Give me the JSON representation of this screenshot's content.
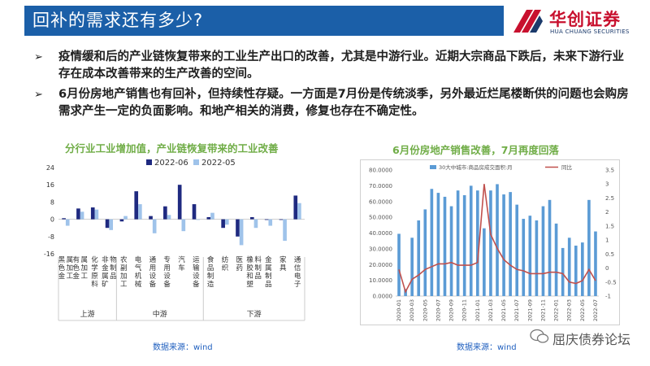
{
  "header": {
    "title": "回补的需求还有多少?"
  },
  "logo": {
    "cn": "华创证券",
    "en": "HUA CHUANG SECURITIES"
  },
  "bullets": [
    "疫情缓和后的产业链恢复带来的工业生产出口的改善，尤其是中游行业。近期大宗商品下跌后，未来下游行业存在成本改善带来的生产改善的空间。",
    "6月份房地产销售也有回补，但持续性存疑。一方面是7月份是传统淡季，另外最近烂尾楼断供的问题也会购房需求产生一定的负面影响。和地产相关的消费，修复也存在不确定性。"
  ],
  "left_title": "分行业工业增加值，产业链恢复带来的工业改善",
  "right_title": "6月份房地产销售改善，7月再度回落",
  "left_source": "数据来源：wind",
  "right_source": "数据来源：wind",
  "watermark": "屈庆债券论坛",
  "colors": {
    "title_bg": "#1b5fa8",
    "series_dark": "#1f2a80",
    "series_light": "#9fc3ea",
    "line_red": "#c0504d",
    "bar_blue": "#5b9bd5",
    "green_title": "#70ad47"
  },
  "chart_data": [
    {
      "type": "bar",
      "legend_position": "top",
      "categories": [
        "黑色金属加工",
        "有色金属加工",
        "化学原料",
        "非金属矿物制品",
        "农副加工",
        "电气机械",
        "通用设备",
        "专用设备",
        "汽车",
        "运输设备",
        "食品制造",
        "纺织",
        "医药",
        "橡胶和塑料制品",
        "金属制品",
        "家具",
        "通信电子"
      ],
      "groups": [
        {
          "label": "上游",
          "from": 0,
          "to": 3
        },
        {
          "label": "中游",
          "from": 4,
          "to": 9
        },
        {
          "label": "下游",
          "from": 10,
          "to": 16
        }
      ],
      "series": [
        {
          "name": "2022-06",
          "values": [
            0.5,
            5,
            5.5,
            -4,
            -1,
            13,
            1.5,
            6,
            16,
            7,
            1,
            -4,
            -8,
            1,
            0,
            0,
            11
          ]
        },
        {
          "name": "2022-05",
          "values": [
            -3,
            3.5,
            4.5,
            -5,
            1.5,
            7,
            -6.5,
            2,
            -5.5,
            0,
            3,
            -2.5,
            -12,
            -4,
            -3,
            -10,
            7.5
          ]
        }
      ],
      "ylim": [
        -16,
        24
      ],
      "yticks": [
        "24",
        "16",
        "8",
        "0",
        "-8",
        "-16"
      ]
    },
    {
      "type": "bar",
      "legend_position": "top",
      "x": [
        "2020-01",
        "2020-02",
        "2020-03",
        "2020-04",
        "2020-05",
        "2020-06",
        "2020-07",
        "2020-08",
        "2020-09",
        "2020-10",
        "2020-11",
        "2020-12",
        "2021-01",
        "2021-02",
        "2021-03",
        "2021-04",
        "2021-05",
        "2021-06",
        "2021-07",
        "2021-08",
        "2021-09",
        "2021-10",
        "2021-11",
        "2021-12",
        "2022-01",
        "2022-02",
        "2022-03",
        "2022-04",
        "2022-05",
        "2022-06",
        "2022-07"
      ],
      "xtick_labels": [
        "2020-01",
        "2020-03",
        "2020-05",
        "2020-07",
        "2020-09",
        "2020-11",
        "2021-01",
        "2021-03",
        "2021-05",
        "2021-07",
        "2021-09",
        "2021-11",
        "2022-01",
        "2022-03",
        "2022-05",
        "2022-07"
      ],
      "series": [
        {
          "name": "30大中城市:商品房成交面积:月",
          "axis": "left",
          "kind": "bar",
          "values": [
            39500,
            4500,
            37000,
            48000,
            55000,
            68000,
            65500,
            63000,
            57000,
            67000,
            64000,
            70000,
            67000,
            43000,
            67000,
            71000,
            64500,
            66000,
            58000,
            49000,
            51000,
            48000,
            57000,
            61000,
            46000,
            30500,
            37000,
            32000,
            34000,
            61000,
            41000
          ]
        },
        {
          "name": "同比",
          "axis": "right",
          "kind": "line",
          "values": [
            -0.05,
            -0.85,
            -0.4,
            -0.25,
            -0.05,
            0.05,
            0.15,
            0.15,
            0.2,
            0.1,
            0.1,
            0.1,
            0.2,
            3.0,
            1.2,
            0.7,
            0.3,
            0.1,
            -0.05,
            -0.1,
            -0.2,
            -0.2,
            -0.2,
            -0.15,
            -0.15,
            -0.2,
            -0.5,
            -0.55,
            -0.45,
            -0.05,
            -0.45
          ]
        }
      ],
      "ylim": [
        0,
        80000
      ],
      "ylim_right": [
        -1,
        3.5
      ],
      "yticks_left": [
        "80.0000",
        "70.0000",
        "60.0000",
        "50.0000",
        "40.0000",
        "30.0000",
        "20.0000",
        "10.0000",
        "0.0000"
      ],
      "yticks_right": [
        "3.5",
        "3",
        "2.5",
        "2",
        "1.5",
        "1",
        "0.5",
        "0",
        "-0.5",
        "-1"
      ]
    }
  ]
}
